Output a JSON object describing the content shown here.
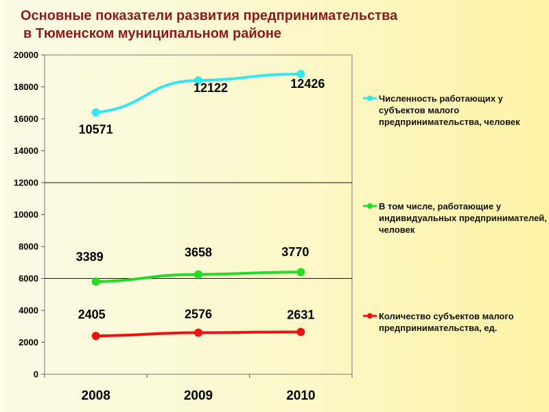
{
  "title": {
    "line1": "Основные показатели развития предпринимательства",
    "line2": "в Тюменском муниципальном районе"
  },
  "chart_data": {
    "type": "line",
    "categories": [
      "2008",
      "2009",
      "2010"
    ],
    "ylim": [
      0,
      20000
    ],
    "yticks": [
      0,
      2000,
      4000,
      6000,
      8000,
      10000,
      12000,
      14000,
      16000,
      18000,
      20000
    ],
    "gridlines": [
      6000,
      12000
    ],
    "legend_position": "right",
    "series": [
      {
        "name": "Численность работающих  у субъектов малого предпринимательства, человек",
        "color": "#33e5ee",
        "values": [
          16400,
          18400,
          18800
        ],
        "labels": [
          "10571",
          "12122",
          "12426"
        ]
      },
      {
        "name": "В том числе, работающие у индивидуальных предпринимателей, человек",
        "color": "#22dd22",
        "values": [
          5800,
          6250,
          6400
        ],
        "labels": [
          "3389",
          "3658",
          "3770"
        ]
      },
      {
        "name": "Количество субъектов малого предпринимательства, ед.",
        "color": "#ee1111",
        "values": [
          2400,
          2600,
          2650
        ],
        "labels": [
          "2405",
          "2576",
          "2631"
        ]
      }
    ]
  }
}
